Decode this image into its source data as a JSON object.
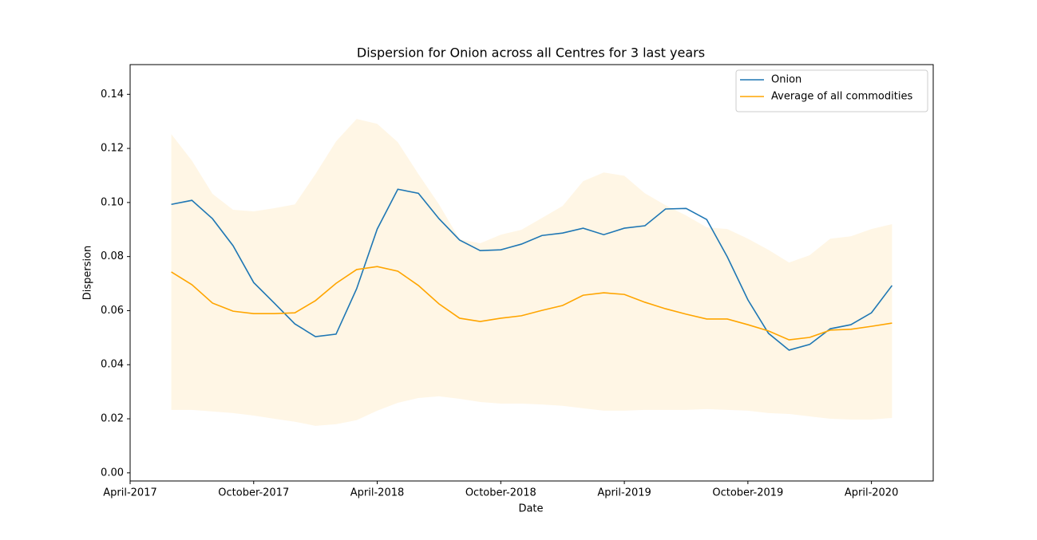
{
  "chart_data": {
    "type": "line",
    "title": "Dispersion for Onion across all Centres for 3 last years",
    "xlabel": "Date",
    "ylabel": "Dispersion",
    "x": [
      "2017-06",
      "2017-07",
      "2017-08",
      "2017-09",
      "2017-10",
      "2017-11",
      "2017-12",
      "2018-01",
      "2018-02",
      "2018-03",
      "2018-04",
      "2018-05",
      "2018-06",
      "2018-07",
      "2018-08",
      "2018-09",
      "2018-10",
      "2018-11",
      "2018-12",
      "2019-01",
      "2019-02",
      "2019-03",
      "2019-04",
      "2019-05",
      "2019-06",
      "2019-07",
      "2019-08",
      "2019-09",
      "2019-10",
      "2019-11",
      "2019-12",
      "2020-01",
      "2020-02",
      "2020-03",
      "2020-04",
      "2020-05"
    ],
    "series": [
      {
        "name": "Onion",
        "color": "#1f77b4",
        "values": [
          0.0993,
          0.1008,
          0.094,
          0.084,
          0.0704,
          0.0628,
          0.0551,
          0.0504,
          0.0513,
          0.0681,
          0.0902,
          0.1049,
          0.1034,
          0.094,
          0.0861,
          0.0822,
          0.0825,
          0.0846,
          0.0878,
          0.0887,
          0.0905,
          0.0881,
          0.0905,
          0.0914,
          0.0976,
          0.0978,
          0.0937,
          0.0799,
          0.064,
          0.0516,
          0.0454,
          0.0475,
          0.0533,
          0.0548,
          0.0592,
          0.0693
        ]
      },
      {
        "name": "Average of all commodities",
        "color": "#ffa500",
        "values": [
          0.0743,
          0.0696,
          0.0628,
          0.0598,
          0.0589,
          0.0589,
          0.0592,
          0.0637,
          0.0701,
          0.0752,
          0.0763,
          0.0746,
          0.0693,
          0.0625,
          0.0572,
          0.056,
          0.0572,
          0.0581,
          0.0601,
          0.0619,
          0.0657,
          0.0666,
          0.066,
          0.0631,
          0.0607,
          0.0587,
          0.0569,
          0.0569,
          0.0548,
          0.0525,
          0.0492,
          0.0501,
          0.0528,
          0.0531,
          0.0542,
          0.0554
        ]
      }
    ],
    "band": {
      "color": "#ffa500",
      "opacity": 0.1,
      "upper": [
        0.1253,
        0.1155,
        0.1032,
        0.0973,
        0.0967,
        0.0979,
        0.0993,
        0.1105,
        0.1226,
        0.1309,
        0.1291,
        0.1223,
        0.1105,
        0.0993,
        0.0864,
        0.0849,
        0.0881,
        0.0899,
        0.0943,
        0.0987,
        0.1079,
        0.1111,
        0.1099,
        0.1034,
        0.099,
        0.0952,
        0.0908,
        0.0902,
        0.0866,
        0.0825,
        0.0778,
        0.0805,
        0.0866,
        0.0875,
        0.0902,
        0.092
      ],
      "lower": [
        0.0233,
        0.0233,
        0.0227,
        0.0221,
        0.0212,
        0.02,
        0.0189,
        0.0174,
        0.018,
        0.0195,
        0.023,
        0.0259,
        0.0277,
        0.0283,
        0.0274,
        0.0262,
        0.0256,
        0.0256,
        0.0253,
        0.0248,
        0.0239,
        0.023,
        0.023,
        0.0233,
        0.0233,
        0.0233,
        0.0236,
        0.0233,
        0.023,
        0.0221,
        0.0218,
        0.0209,
        0.02,
        0.0197,
        0.0197,
        0.0203
      ]
    },
    "xlim": [
      "2017-04",
      "2020-07"
    ],
    "xticks": [
      {
        "value": "2017-04",
        "label": "April-2017"
      },
      {
        "value": "2017-10",
        "label": "October-2017"
      },
      {
        "value": "2018-04",
        "label": "April-2018"
      },
      {
        "value": "2018-10",
        "label": "October-2018"
      },
      {
        "value": "2019-04",
        "label": "April-2019"
      },
      {
        "value": "2019-10",
        "label": "October-2019"
      },
      {
        "value": "2020-04",
        "label": "April-2020"
      }
    ],
    "ylim": [
      -0.003,
      0.151
    ],
    "yticks": [
      {
        "value": 0,
        "label": "0.00"
      },
      {
        "value": 0.02,
        "label": "0.02"
      },
      {
        "value": 0.04,
        "label": "0.04"
      },
      {
        "value": 0.06,
        "label": "0.06"
      },
      {
        "value": 0.08,
        "label": "0.08"
      },
      {
        "value": 0.1,
        "label": "0.10"
      },
      {
        "value": 0.12,
        "label": "0.12"
      },
      {
        "value": 0.14,
        "label": "0.14"
      }
    ],
    "legend": "upper right",
    "grid": false
  }
}
